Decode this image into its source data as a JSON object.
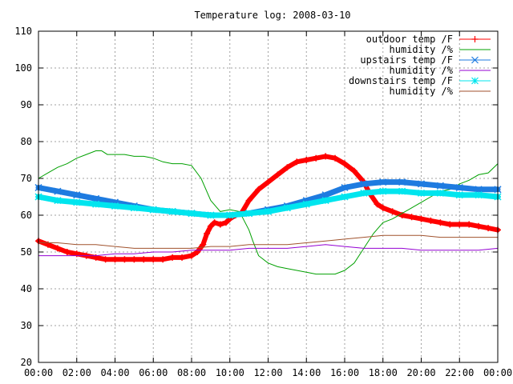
{
  "chart_data": {
    "type": "line",
    "title": "Temperature log: 2008-03-10",
    "xlabel": "",
    "ylabel": "",
    "xlim": [
      0,
      24
    ],
    "ylim": [
      20,
      110
    ],
    "grid": true,
    "legend_position": "top-right",
    "x_ticks": [
      "00:00",
      "02:00",
      "04:00",
      "06:00",
      "08:00",
      "10:00",
      "12:00",
      "14:00",
      "16:00",
      "18:00",
      "20:00",
      "22:00",
      "00:00"
    ],
    "y_ticks": [
      20,
      30,
      40,
      50,
      60,
      70,
      80,
      90,
      100,
      110
    ],
    "series": [
      {
        "name": "outdoor temp /F",
        "color": "#ff0000",
        "marker": "plus",
        "x": [
          0,
          0.5,
          1,
          1.5,
          2,
          2.5,
          3,
          3.5,
          4,
          4.5,
          5,
          5.5,
          6,
          6.5,
          7,
          7.5,
          8,
          8.3,
          8.6,
          8.8,
          9,
          9.2,
          9.5,
          9.8,
          10,
          10.3,
          10.6,
          11,
          11.5,
          12,
          12.5,
          13,
          13.5,
          14,
          14.5,
          15,
          15.5,
          16,
          16.5,
          17,
          17.3,
          17.7,
          18,
          18.5,
          19,
          19.5,
          20,
          20.5,
          21,
          21.5,
          22,
          22.5,
          23,
          23.5,
          24
        ],
        "y": [
          53,
          52,
          51,
          50,
          49.5,
          49,
          48.5,
          48,
          48,
          48,
          48,
          48,
          48,
          48,
          48.5,
          48.5,
          49,
          50,
          52,
          55,
          57,
          58,
          57.5,
          58,
          59,
          60,
          60.5,
          64,
          67,
          69,
          71,
          73,
          74.5,
          75,
          75.5,
          76,
          75.5,
          74,
          72,
          69,
          66,
          63,
          62,
          61,
          60,
          59.5,
          59,
          58.5,
          58,
          57.5,
          57.5,
          57.5,
          57,
          56.5,
          56
        ]
      },
      {
        "name": "humidity /%",
        "color": "#00a000",
        "marker": "none",
        "x": [
          0,
          0.5,
          1,
          1.5,
          2,
          2.5,
          3,
          3.3,
          3.6,
          4,
          4.5,
          5,
          5.5,
          6,
          6.5,
          7,
          7.5,
          8,
          8.5,
          9,
          9.5,
          10,
          10.5,
          11,
          11.2,
          11.5,
          12,
          12.5,
          13,
          13.5,
          14,
          14.5,
          15,
          15.5,
          16,
          16.5,
          17,
          17.5,
          18,
          18.5,
          19,
          19.5,
          20,
          20.5,
          21,
          21.5,
          22,
          22.5,
          23,
          23.5,
          24
        ],
        "y": [
          70,
          71.5,
          73,
          74,
          75.5,
          76.5,
          77.5,
          77.5,
          76.5,
          76.5,
          76.5,
          76,
          76,
          75.5,
          74.5,
          74,
          74,
          73.5,
          70,
          64,
          61,
          61.5,
          61,
          56,
          53,
          49,
          47,
          46,
          45.5,
          45,
          44.5,
          44,
          44,
          44,
          45,
          47,
          51,
          55,
          58,
          59,
          60.5,
          62,
          63.5,
          65,
          66.5,
          67,
          68.5,
          69.5,
          71,
          71.5,
          74
        ]
      },
      {
        "name": "upstairs temp /F",
        "color": "#1e7be0",
        "marker": "cross",
        "x": [
          0,
          1,
          2,
          3,
          4,
          5,
          6,
          7,
          8,
          9,
          10,
          11,
          12,
          13,
          14,
          15,
          16,
          17,
          18,
          19,
          20,
          21,
          22,
          23,
          24
        ],
        "y": [
          67.5,
          66.5,
          65.5,
          64.5,
          63.5,
          62.5,
          61.5,
          61,
          60.5,
          60,
          60,
          60.5,
          61.5,
          62.5,
          64,
          65.5,
          67.5,
          68.5,
          69,
          69,
          68.5,
          68,
          67.5,
          67,
          67
        ]
      },
      {
        "name": "humidity /%",
        "color": "#9400d3",
        "marker": "none",
        "x": [
          0,
          1,
          2,
          3,
          4,
          5,
          6,
          7,
          8,
          9,
          10,
          11,
          12,
          13,
          14,
          15,
          16,
          17,
          18,
          19,
          20,
          21,
          22,
          23,
          24
        ],
        "y": [
          49,
          49,
          49,
          49,
          49.5,
          49.5,
          50,
          50,
          50.5,
          50.5,
          50.5,
          51,
          51,
          51,
          51.5,
          52,
          51.5,
          51,
          51,
          51,
          50.5,
          50.5,
          50.5,
          50.5,
          51
        ]
      },
      {
        "name": "downstairs temp /F",
        "color": "#00e5ee",
        "marker": "star",
        "x": [
          0,
          1,
          2,
          3,
          4,
          5,
          6,
          7,
          8,
          9,
          10,
          11,
          12,
          13,
          14,
          15,
          16,
          17,
          18,
          19,
          20,
          21,
          22,
          23,
          24
        ],
        "y": [
          65,
          64,
          63.5,
          63,
          62.5,
          62,
          61.5,
          61,
          60.5,
          60,
          60,
          60.5,
          61,
          62,
          63,
          64,
          65,
          66,
          66.5,
          66.5,
          66,
          66,
          65.5,
          65.5,
          65
        ]
      },
      {
        "name": "humidity /%",
        "color": "#a0522d",
        "marker": "none",
        "x": [
          0,
          1,
          2,
          3,
          4,
          5,
          6,
          7,
          8,
          9,
          10,
          11,
          12,
          13,
          14,
          15,
          16,
          17,
          18,
          19,
          20,
          21,
          22,
          23,
          24
        ],
        "y": [
          52.5,
          52.5,
          52,
          52,
          51.5,
          51,
          51,
          51,
          51,
          51.5,
          51.5,
          52,
          52,
          52,
          52.5,
          53,
          53.5,
          54,
          54.5,
          54.5,
          54.5,
          54,
          54,
          54,
          54
        ]
      }
    ]
  }
}
